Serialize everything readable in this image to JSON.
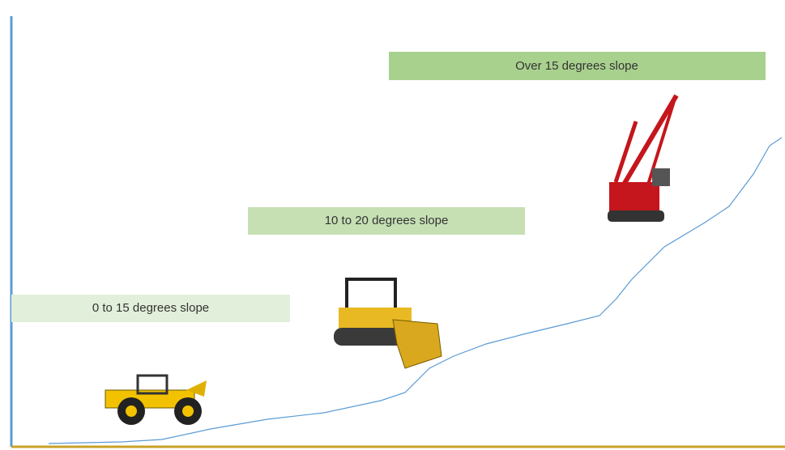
{
  "slopes": [
    "0 to 15 degrees slope",
    "10 to 20 degrees slope",
    "Over 15 degrees slope"
  ]
}
